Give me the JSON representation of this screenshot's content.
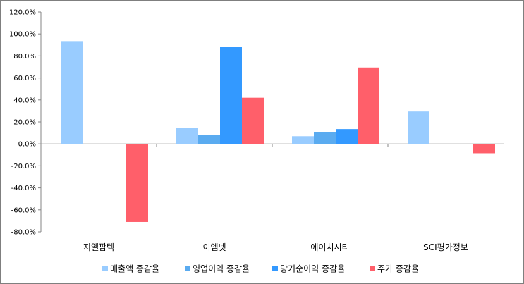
{
  "chart_data": {
    "type": "bar",
    "categories": [
      "지엘팜텍",
      "이엠넷",
      "에이치시티",
      "SCI평가정보"
    ],
    "series": [
      {
        "name": "매출액 증감율",
        "color": "#99ccff",
        "values": [
          93.5,
          14.5,
          7.0,
          29.5
        ]
      },
      {
        "name": "영업이익 증감율",
        "color": "#5aabf0",
        "values": [
          null,
          8.0,
          11.0,
          null
        ]
      },
      {
        "name": "당기순이익 증감율",
        "color": "#3399ff",
        "values": [
          null,
          88.0,
          13.5,
          null
        ]
      },
      {
        "name": "주가 증감율",
        "color": "#ff5f6a",
        "values": [
          -71.0,
          42.0,
          69.5,
          -8.5
        ]
      }
    ],
    "yticks": [
      "-80.0%",
      "-60.0%",
      "-40.0%",
      "-20.0%",
      "0.0%",
      "20.0%",
      "40.0%",
      "60.0%",
      "80.0%",
      "100.0%",
      "120.0%"
    ],
    "ylim": [
      -80,
      120
    ],
    "grid": false,
    "legend_position": "bottom"
  }
}
